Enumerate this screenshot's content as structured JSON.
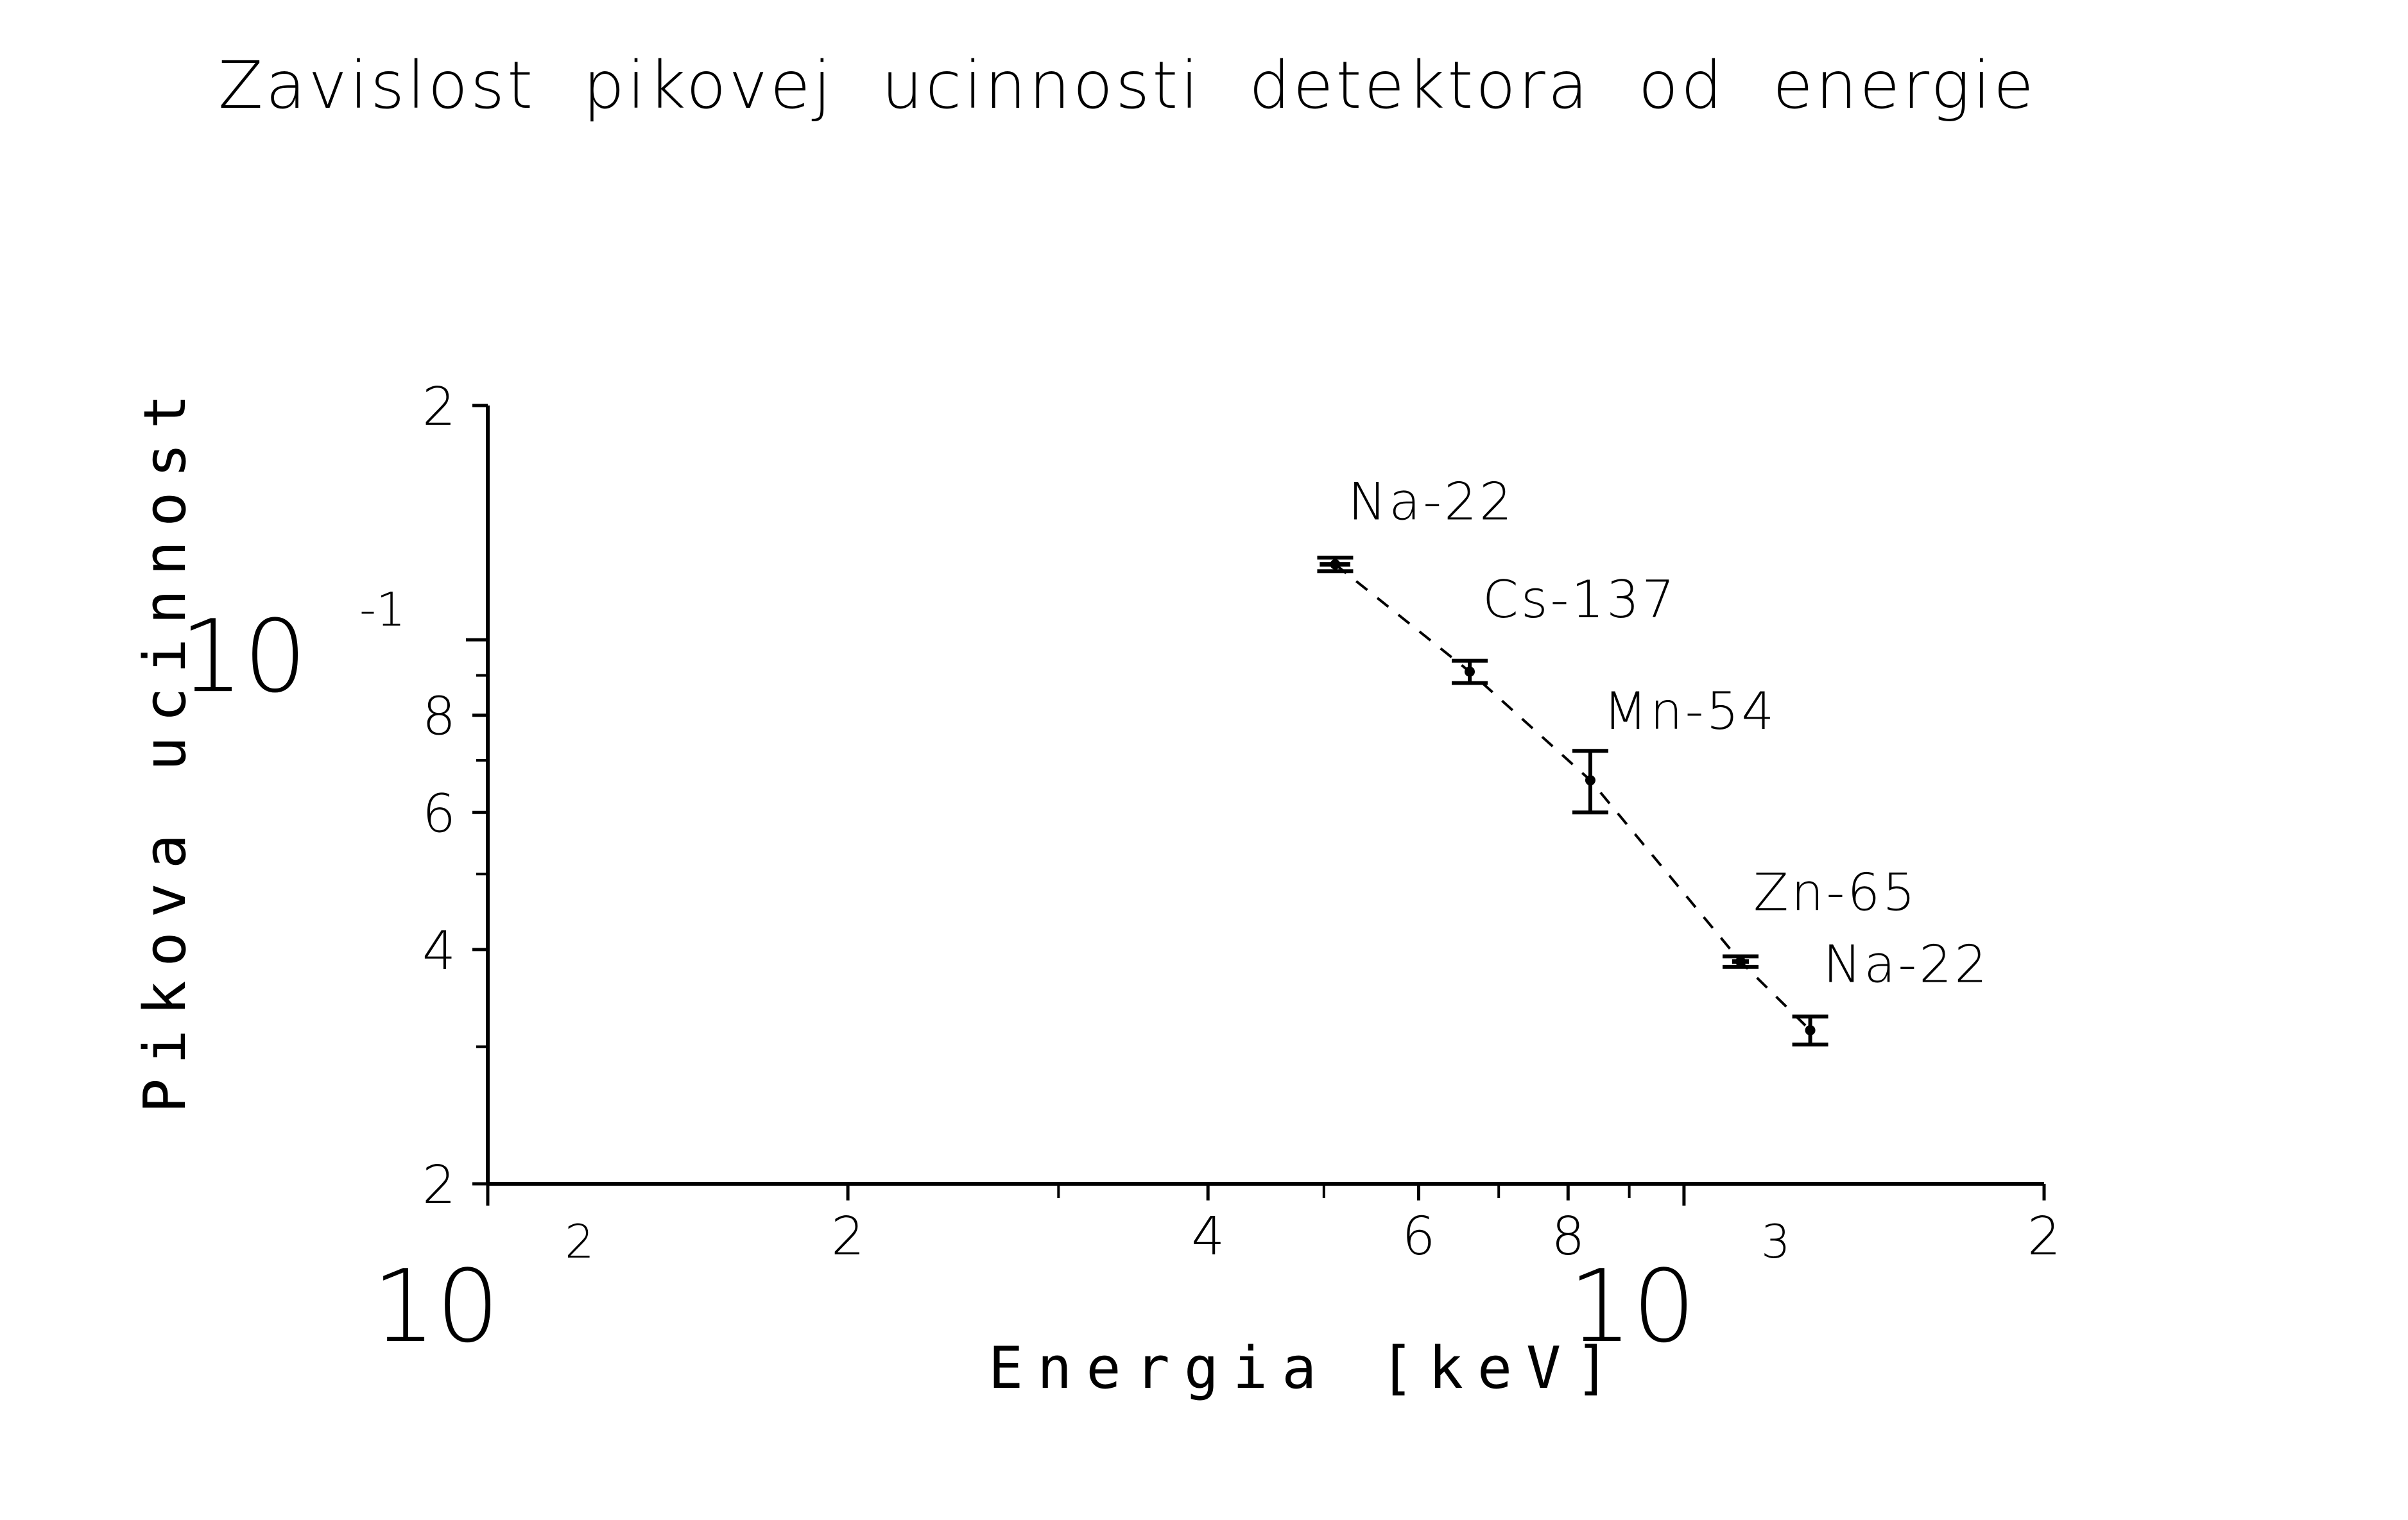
{
  "chart_data": {
    "type": "scatter",
    "title": "Zavislost pikovej ucinnosti detektora od energie",
    "xlabel": "Energia [keV]",
    "ylabel": "Pikova ucinnost",
    "x_scale": "log",
    "y_scale": "log",
    "xlim": [
      100,
      2000
    ],
    "ylim": [
      0.02,
      0.2
    ],
    "x_ticks": {
      "major": [
        {
          "value": 100,
          "mantissa": "10",
          "exponent": "2"
        },
        {
          "value": 1000,
          "mantissa": "10",
          "exponent": "3"
        }
      ],
      "labeled": [
        {
          "value": 200,
          "label": "2"
        },
        {
          "value": 400,
          "label": "4"
        },
        {
          "value": 600,
          "label": "6"
        },
        {
          "value": 800,
          "label": "8"
        },
        {
          "value": 2000,
          "label": "2"
        }
      ],
      "minor": [
        300,
        500,
        700,
        900
      ]
    },
    "y_ticks": {
      "major": [
        {
          "value": 0.1,
          "mantissa": "10",
          "exponent": "-1"
        }
      ],
      "labeled": [
        {
          "value": 0.02,
          "label": "2"
        },
        {
          "value": 0.04,
          "label": "4"
        },
        {
          "value": 0.06,
          "label": "6"
        },
        {
          "value": 0.08,
          "label": "8"
        },
        {
          "value": 0.2,
          "label": "2"
        }
      ],
      "minor": [
        0.03,
        0.05,
        0.07,
        0.09
      ]
    },
    "series": [
      {
        "points": [
          {
            "label": "Na-22",
            "x": 511,
            "y": 0.125,
            "err": 0.0025,
            "xerr": 15
          },
          {
            "label": "Cs-137",
            "x": 662,
            "y": 0.091,
            "err": 0.003,
            "xerr": 0
          },
          {
            "label": "Mn-54",
            "x": 835,
            "y": 0.066,
            "err": 0.006,
            "xerr": 0
          },
          {
            "label": "Zn-65",
            "x": 1115,
            "y": 0.0386,
            "err": 0.0006,
            "xerr": 18
          },
          {
            "label": "Na-22",
            "x": 1275,
            "y": 0.0315,
            "err": 0.0013,
            "xerr": 0
          }
        ],
        "fit_line": "dashed"
      }
    ],
    "grid": false,
    "legend": "none"
  }
}
